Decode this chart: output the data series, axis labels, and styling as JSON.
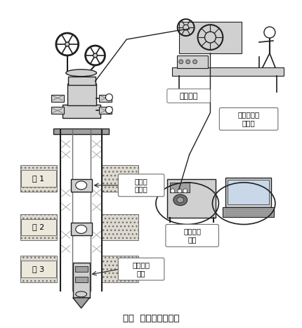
{
  "title": "附图  整体流程示意图",
  "title_fontsize": 10,
  "bg_color": "#f5f5f0",
  "labels": {
    "layer1": "层 1",
    "layer2": "层 2",
    "layer3": "层 3",
    "water_device": "可调配\n水装置",
    "integrated_meter": "一体化测\n调仪",
    "ground_control": "地面控制\n设备",
    "data_system": "数据处理分\n析系统",
    "winch": "测试绞车"
  }
}
